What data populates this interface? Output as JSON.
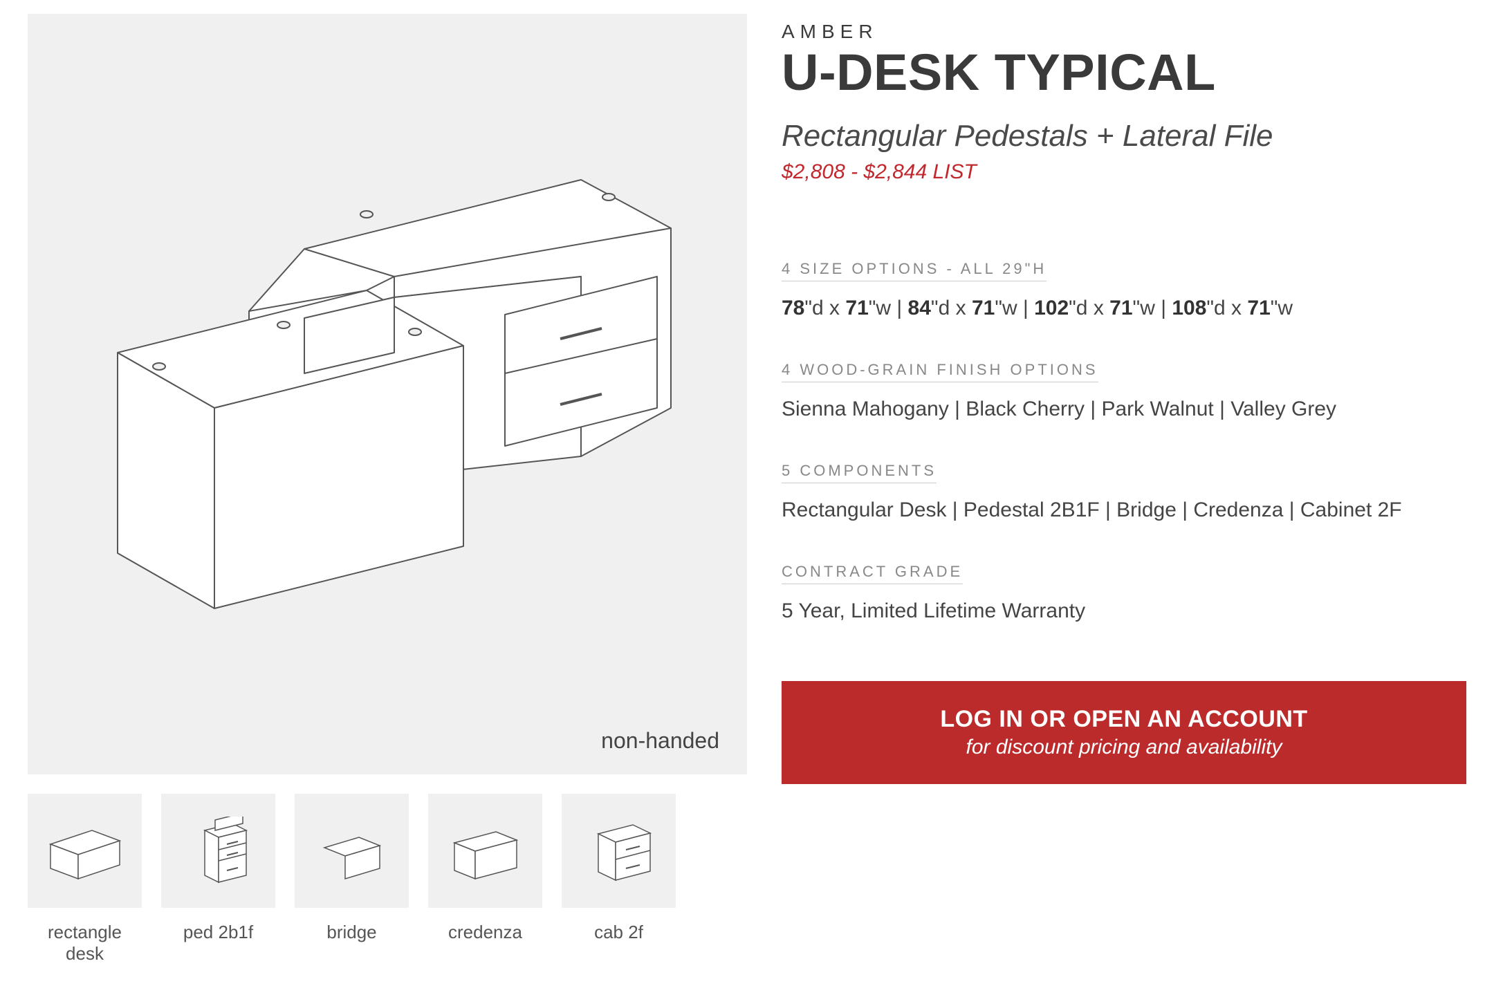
{
  "colors": {
    "page_bg": "#ffffff",
    "panel_bg": "#f0f0f0",
    "text_primary": "#3a3a3a",
    "text_body": "#444444",
    "text_muted": "#888888",
    "accent_red": "#c1272d",
    "cta_bg": "#bc2b2b",
    "cta_text": "#ffffff",
    "line": "#555555",
    "rule": "#cccccc"
  },
  "main_image": {
    "caption": "non-handed"
  },
  "thumbs": [
    {
      "label": "rectangle\ndesk"
    },
    {
      "label": "ped 2b1f"
    },
    {
      "label": "bridge"
    },
    {
      "label": "credenza"
    },
    {
      "label": "cab 2f"
    }
  ],
  "product": {
    "eyebrow": "AMBER",
    "title": "U-DESK TYPICAL",
    "subtitle": "Rectangular Pedestals + Lateral File",
    "price": "$2,808 - $2,844 LIST"
  },
  "sections": {
    "sizes": {
      "label": "4 SIZE OPTIONS - ALL 29\"H",
      "opts": [
        {
          "d": "78",
          "w": "71"
        },
        {
          "d": "84",
          "w": "71"
        },
        {
          "d": "102",
          "w": "71"
        },
        {
          "d": "108",
          "w": "71"
        }
      ]
    },
    "finish": {
      "label": "4 WOOD-GRAIN FINISH OPTIONS",
      "body": "Sienna Mahogany | Black Cherry | Park Walnut | Valley Grey"
    },
    "components": {
      "label": "5 COMPONENTS",
      "body": "Rectangular Desk | Pedestal 2B1F | Bridge | Credenza | Cabinet 2F"
    },
    "grade": {
      "label": "CONTRACT GRADE",
      "body": "5 Year, Limited Lifetime Warranty"
    }
  },
  "cta": {
    "line1": "LOG IN OR OPEN AN ACCOUNT",
    "line2": "for discount pricing and availability"
  }
}
